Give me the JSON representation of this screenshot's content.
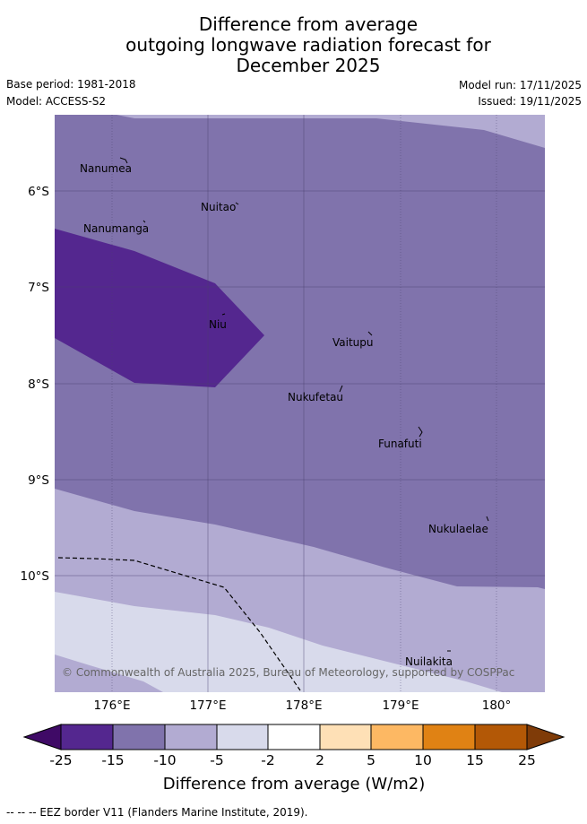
{
  "title": {
    "line1": "Difference from average",
    "line2": "outgoing longwave radiation forecast for",
    "line3": "December 2025"
  },
  "meta": {
    "base_period": "Base period: 1981-2018",
    "model": "Model: ACCESS-S2",
    "model_run": "Model run: 17/11/2025",
    "issued": "Issued: 19/11/2025"
  },
  "map": {
    "lat_labels": [
      "6°S",
      "7°S",
      "8°S",
      "9°S",
      "10°S"
    ],
    "lon_labels": [
      "176°E",
      "177°E",
      "178°E",
      "179°E",
      "180°"
    ],
    "places": [
      "Nanumea",
      "Nuitao",
      "Nanumanga",
      "Niu",
      "Vaitupu",
      "Nukufetau",
      "Funafuti",
      "Nukulaelae",
      "Nuilakita"
    ],
    "copyright": "© Commonwealth of Australia 2025, Bureau of Meteorology, supported by COSPPac"
  },
  "colorbar": {
    "ticks": [
      "-25",
      "-15",
      "-10",
      "-5",
      "-2",
      "2",
      "5",
      "10",
      "15",
      "25"
    ],
    "colors": [
      "#3f0a66",
      "#54278f",
      "#8073ac",
      "#b2abd2",
      "#d8daeb",
      "#ffffff",
      "#fee0b6",
      "#fdb863",
      "#e08214",
      "#b35806",
      "#7f3b08"
    ],
    "label": "Difference from average (W/m2)"
  },
  "footer": "-- -- -- EEZ border V11 (Flanders Marine Institute, 2019)."
}
